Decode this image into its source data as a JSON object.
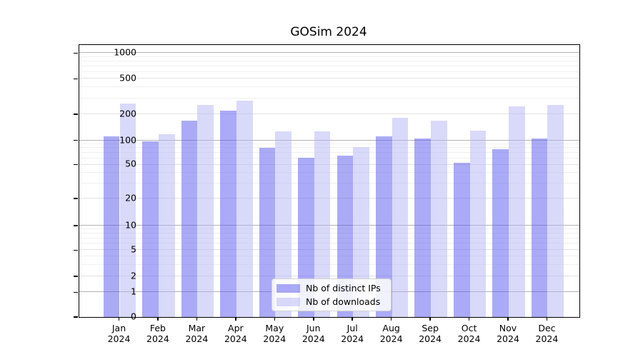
{
  "title": "GOSim 2024",
  "chart_data": {
    "type": "bar",
    "title": "GOSim 2024",
    "yscale": "symlog",
    "grid": true,
    "legend_position": "lower center",
    "ylim": [
      0,
      1240
    ],
    "y_ticks": [
      0,
      1,
      2,
      5,
      10,
      20,
      50,
      100,
      200,
      500,
      1000
    ],
    "categories": [
      "Jan 2024",
      "Feb 2024",
      "Mar 2024",
      "Apr 2024",
      "May 2024",
      "Jun 2024",
      "Jul 2024",
      "Aug 2024",
      "Sep 2024",
      "Oct 2024",
      "Nov 2024",
      "Dec 2024"
    ],
    "series": [
      {
        "name": "Nb of distinct IPs",
        "color": "#5555ef",
        "opacity": 0.5,
        "values": [
          111,
          97,
          167,
          220,
          80,
          61,
          64,
          112,
          105,
          53,
          78,
          105
        ]
      },
      {
        "name": "Nb of downloads",
        "color": "#b4b4f5",
        "opacity": 0.5,
        "values": [
          263,
          118,
          255,
          283,
          127,
          127,
          83,
          180,
          167,
          130,
          243,
          255
        ]
      }
    ]
  }
}
